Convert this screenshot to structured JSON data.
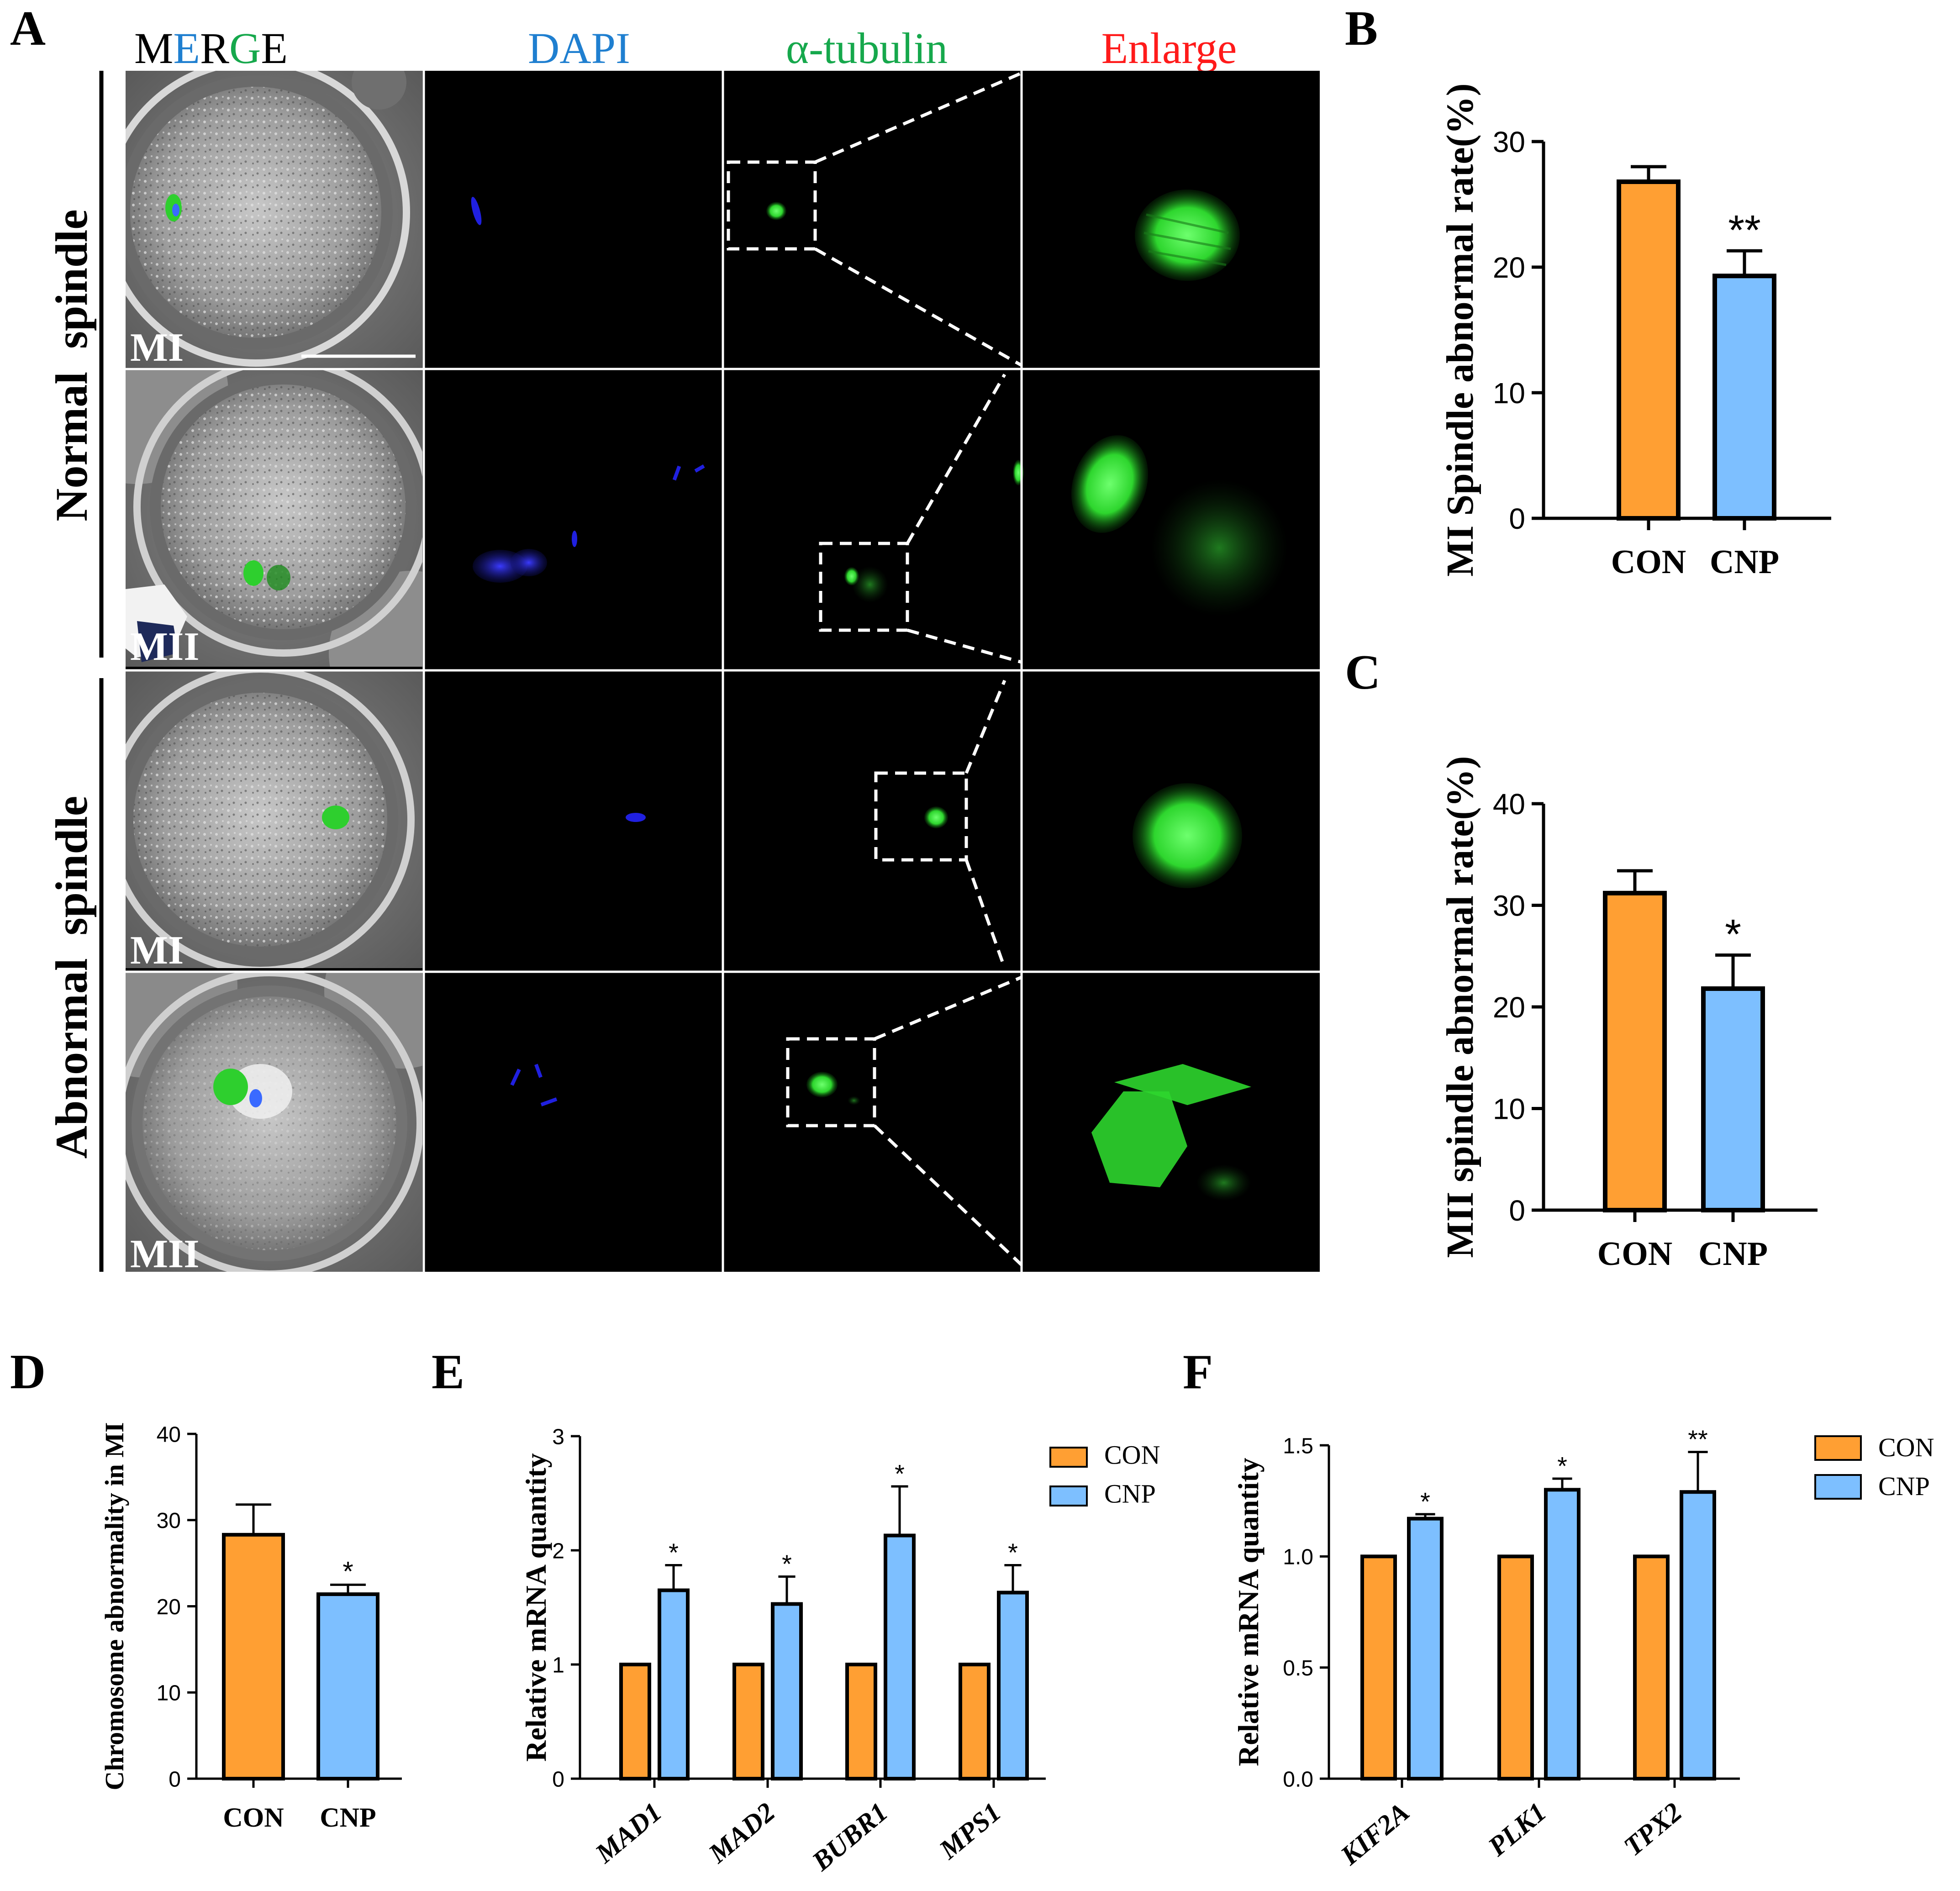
{
  "panel_a": {
    "letter": "A",
    "column_headers": [
      {
        "text": "M",
        "color": "#000000"
      },
      {
        "text": "E",
        "color": "#1f7fd0"
      },
      {
        "text": "R",
        "color": "#000000"
      },
      {
        "text": "G",
        "color": "#16a84c"
      },
      {
        "text": "E",
        "color": "#000000"
      }
    ],
    "column_labels": [
      {
        "text": "DAPI",
        "color": "#1f7fd0"
      },
      {
        "text": "α-tubulin",
        "color": "#16a84c"
      },
      {
        "text": "Enlarge",
        "color": "#ff1a1a"
      }
    ],
    "row_groups": [
      "Normal  spindle",
      "Abnormal  spindle"
    ],
    "stage_labels": [
      "MI",
      "MII",
      "MI",
      "MII"
    ]
  },
  "chart_data": [
    {
      "panel": "B",
      "type": "bar",
      "categories": [
        "CON",
        "CNP"
      ],
      "values": [
        26.8,
        19.3
      ],
      "errors": [
        1.2,
        2.0
      ],
      "colors": [
        "#ff9f33",
        "#7dbfff"
      ],
      "significance": [
        "",
        "**"
      ],
      "ylabel": "MI Spindle abnormal rate(%)",
      "ylim": [
        0,
        30
      ],
      "yticks": [
        0,
        10,
        20,
        30
      ]
    },
    {
      "panel": "C",
      "type": "bar",
      "categories": [
        "CON",
        "CNP"
      ],
      "values": [
        31.2,
        21.8
      ],
      "errors": [
        2.2,
        3.3
      ],
      "colors": [
        "#ff9f33",
        "#7dbfff"
      ],
      "significance": [
        "",
        "*"
      ],
      "ylabel": "MII spindle abnormal rate(%)",
      "ylim": [
        0,
        40
      ],
      "yticks": [
        0,
        10,
        20,
        30,
        40
      ]
    },
    {
      "panel": "D",
      "type": "bar",
      "categories": [
        "CON",
        "CNP"
      ],
      "values": [
        28.3,
        21.4
      ],
      "errors": [
        3.5,
        1.1
      ],
      "colors": [
        "#ff9f33",
        "#7dbfff"
      ],
      "significance": [
        "",
        "*"
      ],
      "ylabel": "Chromosome abnormality in MI",
      "ylim": [
        0,
        40
      ],
      "yticks": [
        0,
        10,
        20,
        30,
        40
      ]
    },
    {
      "panel": "E",
      "type": "bar",
      "categories": [
        "MAD1",
        "MAD2",
        "BUBR1",
        "MPS1"
      ],
      "series": [
        {
          "name": "CON",
          "values": [
            1,
            1,
            1,
            1
          ],
          "errors": [
            0,
            0,
            0,
            0
          ],
          "color": "#ff9f33"
        },
        {
          "name": "CNP",
          "values": [
            1.65,
            1.53,
            2.13,
            1.63
          ],
          "errors": [
            0.22,
            0.24,
            0.43,
            0.24
          ],
          "color": "#7dbfff"
        }
      ],
      "significance": [
        "*",
        "*",
        "*",
        "*"
      ],
      "ylabel": "Relative mRNA quantity",
      "ylim": [
        0,
        3
      ],
      "yticks": [
        0,
        1,
        2,
        3
      ],
      "legend": "top-right"
    },
    {
      "panel": "F",
      "type": "bar",
      "categories": [
        "KIF2A",
        "PLK1",
        "TPX2"
      ],
      "series": [
        {
          "name": "CON",
          "values": [
            1,
            1,
            1
          ],
          "errors": [
            0,
            0,
            0
          ],
          "color": "#ff9f33"
        },
        {
          "name": "CNP",
          "values": [
            1.17,
            1.3,
            1.29
          ],
          "errors": [
            0.02,
            0.05,
            0.18
          ],
          "color": "#7dbfff"
        }
      ],
      "significance": [
        "*",
        "*",
        "**"
      ],
      "ylabel": "Relative mRNA quantity",
      "ylim": [
        0,
        1.5
      ],
      "yticks": [
        "0.0",
        "0.5",
        "1.0",
        "1.5"
      ],
      "legend": "top-right"
    }
  ]
}
